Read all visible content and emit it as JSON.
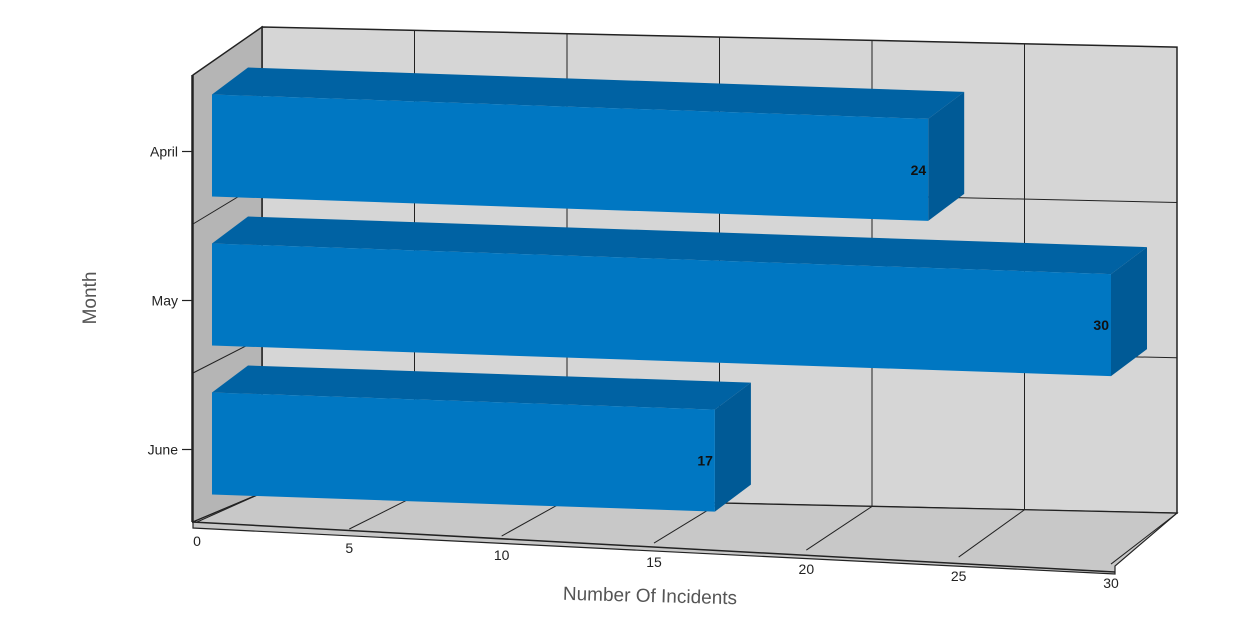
{
  "chart_data": {
    "type": "bar",
    "orientation": "horizontal",
    "style": "3d",
    "categories": [
      "April",
      "May",
      "June"
    ],
    "series": [
      {
        "values": [
          24,
          30,
          17
        ]
      }
    ],
    "xlabel": "Number Of Incidents",
    "ylabel": "Month",
    "xlim": [
      0,
      30
    ],
    "x_ticks": [
      0,
      5,
      10,
      15,
      20,
      25,
      30
    ],
    "grid": true,
    "legend": "none",
    "data_labels": true
  },
  "colors": {
    "bar_front": "#0077c2",
    "bar_top": "#0062a3",
    "bar_side": "#005a96",
    "back_wall": "#d6d6d6",
    "side_wall": "#b5b5b5",
    "floor": "#c8c8c8",
    "grid": "#222222"
  }
}
